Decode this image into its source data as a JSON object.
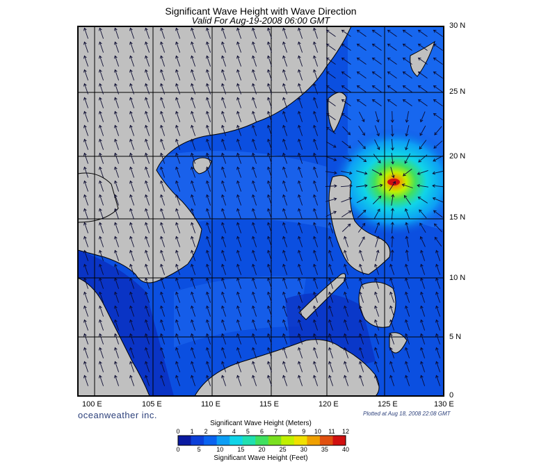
{
  "title": "Significant Wave Height with Wave Direction",
  "subtitle": "Valid For Aug-19-2008 06:00 GMT",
  "brand": "oceanweather inc.",
  "plotted": "Plotted at Aug 18, 2008 22:08 GMT",
  "lat_labels": [
    "30 N",
    "25 N",
    "20 N",
    "15 N",
    "10 N",
    "5 N",
    "0"
  ],
  "lon_labels": [
    "100 E",
    "105 E",
    "110 E",
    "115 E",
    "120 E",
    "125 E",
    "130 E"
  ],
  "colorbar": {
    "meters_title": "Significant Wave Height (Meters)",
    "feet_title": "Significant Wave Height (Feet)",
    "meters_ticks": [
      "0",
      "1",
      "2",
      "3",
      "4",
      "5",
      "6",
      "7",
      "8",
      "9",
      "10",
      "11",
      "12"
    ],
    "feet_ticks": [
      "0",
      "5",
      "10",
      "15",
      "20",
      "25",
      "30",
      "35",
      "40"
    ],
    "colors": [
      "#0a1aa0",
      "#0b3fd8",
      "#0a63f0",
      "#0d9ef5",
      "#10d4e8",
      "#20e0b0",
      "#40e060",
      "#7ae020",
      "#c0f000",
      "#f0e000",
      "#f0a000",
      "#e05010",
      "#d01010"
    ]
  },
  "colors": {
    "land": "#c0c0c0",
    "sea_base": "#0b4fe0",
    "sea_deep": "#0a2fbf",
    "arrow": "#0a0a30"
  }
}
